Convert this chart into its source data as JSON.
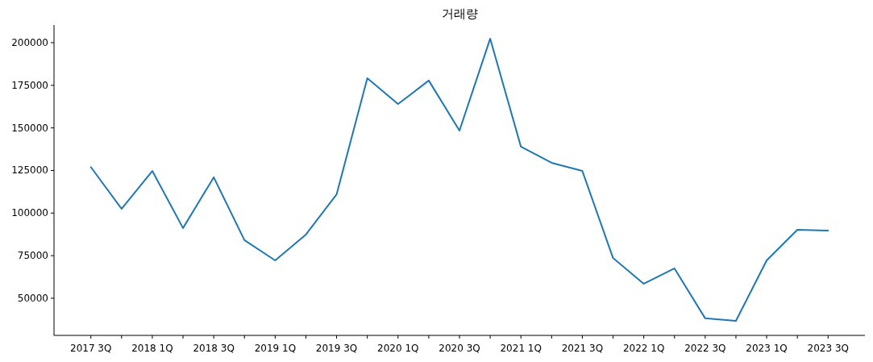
{
  "chart_data": {
    "type": "line",
    "title": "거래량",
    "categories": [
      "2017 3Q",
      null,
      "2018 1Q",
      null,
      "2018 3Q",
      null,
      "2019 1Q",
      null,
      "2019 3Q",
      null,
      "2020 1Q",
      null,
      "2020 3Q",
      null,
      "2021 1Q",
      null,
      "2021 3Q",
      null,
      "2022 1Q",
      null,
      "2022 3Q",
      null,
      "2023 1Q",
      null,
      "2023 3Q"
    ],
    "series": [
      {
        "color": "#1f77b4",
        "values": [
          127000,
          102500,
          124700,
          91200,
          121000,
          84100,
          72200,
          87400,
          111000,
          179200,
          164000,
          177800,
          148400,
          202400,
          139000,
          129500,
          124700,
          73600,
          58500,
          67500,
          38200,
          36700,
          72200,
          90200,
          89700
        ]
      }
    ],
    "ylim": [
      28200,
      210400
    ],
    "yticks": [
      50000,
      75000,
      100000,
      125000,
      150000,
      175000,
      200000
    ],
    "grid": false
  }
}
